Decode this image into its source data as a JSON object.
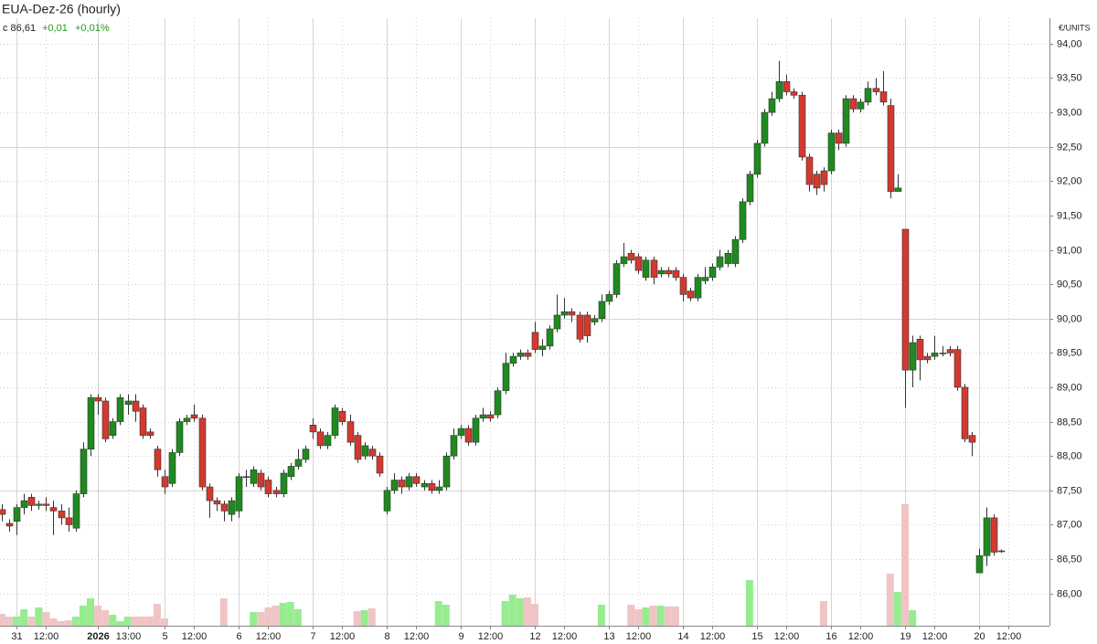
{
  "chart_data": {
    "type": "candlestick",
    "title": "EUA-Dez-26 (hourly)",
    "last_label": "c 86,61",
    "change_label": "+0,01",
    "change_pct_label": "+0,01%",
    "unit_label": "€/UNITS",
    "categories": [
      null,
      null,
      "31",
      null,
      null,
      null,
      "12:00",
      null,
      null,
      null,
      null,
      null,
      null,
      "2026",
      null,
      null,
      null,
      "13:00",
      null,
      null,
      null,
      null,
      "5",
      null,
      null,
      null,
      "12:00",
      null,
      null,
      null,
      null,
      null,
      "6",
      null,
      null,
      null,
      "12:00",
      null,
      null,
      null,
      null,
      null,
      "7",
      null,
      null,
      null,
      "12:00",
      null,
      null,
      null,
      null,
      null,
      "8",
      null,
      null,
      null,
      "12:00",
      null,
      null,
      null,
      null,
      null,
      "9",
      null,
      null,
      null,
      "12:00",
      null,
      null,
      null,
      null,
      null,
      "12",
      null,
      null,
      null,
      "12:00",
      null,
      null,
      null,
      null,
      null,
      "13",
      null,
      null,
      null,
      "12:00",
      null,
      null,
      null,
      null,
      null,
      "14",
      null,
      null,
      null,
      "12:00",
      null,
      null,
      null,
      null,
      null,
      "15",
      null,
      null,
      null,
      "12:00",
      null,
      null,
      null,
      null,
      null,
      "16",
      null,
      null,
      null,
      "12:00",
      null,
      null,
      null,
      null,
      null,
      "19",
      null,
      null,
      null,
      "12:00",
      null,
      null,
      null,
      null,
      null,
      "20",
      null,
      null,
      null,
      "12:00"
    ],
    "open": [
      87.22,
      87.02,
      87.05,
      87.25,
      87.4,
      87.28,
      87.3,
      87.25,
      87.2,
      87.1,
      86.95,
      87.45,
      88.1,
      88.85,
      88.8,
      88.3,
      88.5,
      88.75,
      88.8,
      88.7,
      88.35,
      88.1,
      87.7,
      87.6,
      88.05,
      88.5,
      88.6,
      88.55,
      87.55,
      87.35,
      87.3,
      87.15,
      87.2,
      87.7,
      87.6,
      87.75,
      87.65,
      87.5,
      87.45,
      87.7,
      87.85,
      87.95,
      88.45,
      88.35,
      88.15,
      88.3,
      88.65,
      88.5,
      88.3,
      88.0,
      88.1,
      88.0,
      87.2,
      87.5,
      87.65,
      87.55,
      87.7,
      87.55,
      87.6,
      87.5,
      87.55,
      88.0,
      88.3,
      88.4,
      88.2,
      88.55,
      88.6,
      88.6,
      88.95,
      89.35,
      89.45,
      89.5,
      89.8,
      89.55,
      89.6,
      89.85,
      90.05,
      90.1,
      90.05,
      90.05,
      89.95,
      90.0,
      90.25,
      90.35,
      90.8,
      90.95,
      90.9,
      90.6,
      90.85,
      90.65,
      90.7,
      90.7,
      90.6,
      90.4,
      90.3,
      90.55,
      90.6,
      90.75,
      90.8,
      90.8,
      91.15,
      91.7,
      92.1,
      92.55,
      93.0,
      93.2,
      93.45,
      93.3,
      93.25,
      92.35,
      92.1,
      92.15,
      92.15,
      92.7,
      92.55,
      93.2,
      93.05,
      93.15,
      93.35,
      93.3,
      93.1,
      91.85,
      91.3,
      89.25,
      89.7,
      89.45,
      89.45,
      89.5,
      89.55,
      89.55,
      89.0,
      88.3,
      86.3,
      86.55,
      87.1,
      86.62,
      null
    ],
    "high": [
      87.3,
      87.08,
      87.3,
      87.45,
      87.45,
      87.35,
      87.4,
      87.35,
      87.3,
      87.25,
      87.5,
      88.2,
      88.9,
      88.9,
      88.85,
      88.55,
      88.9,
      88.9,
      88.9,
      88.75,
      88.4,
      88.15,
      87.8,
      88.1,
      88.55,
      88.6,
      88.75,
      88.6,
      87.6,
      87.4,
      87.35,
      87.4,
      87.75,
      87.8,
      87.85,
      87.8,
      87.7,
      87.55,
      87.8,
      87.9,
      88.1,
      88.15,
      88.55,
      88.4,
      88.35,
      88.75,
      88.7,
      88.6,
      88.35,
      88.2,
      88.15,
      88.05,
      87.55,
      87.75,
      87.7,
      87.75,
      87.75,
      87.65,
      87.65,
      87.65,
      88.05,
      88.4,
      88.45,
      88.45,
      88.6,
      88.7,
      88.65,
      89.0,
      89.5,
      89.5,
      89.55,
      89.55,
      89.95,
      89.7,
      89.9,
      90.35,
      90.3,
      90.15,
      90.1,
      90.1,
      90.05,
      90.35,
      90.4,
      90.85,
      91.1,
      91.0,
      90.95,
      90.9,
      90.9,
      90.75,
      90.75,
      90.75,
      90.65,
      90.45,
      90.65,
      90.75,
      90.8,
      91.0,
      91.0,
      91.2,
      91.75,
      92.15,
      92.6,
      93.05,
      93.3,
      93.75,
      93.55,
      93.35,
      93.3,
      92.4,
      92.15,
      92.2,
      92.75,
      92.75,
      93.25,
      93.25,
      93.2,
      93.45,
      93.5,
      93.6,
      93.2,
      92.1,
      91.3,
      89.75,
      89.75,
      89.5,
      89.75,
      89.6,
      89.6,
      89.6,
      89.05,
      88.35,
      86.65,
      87.25,
      87.15,
      86.64,
      null
    ],
    "low": [
      87.05,
      86.9,
      86.85,
      87.15,
      87.2,
      87.22,
      87.2,
      86.85,
      87.0,
      86.9,
      86.9,
      87.4,
      88.0,
      88.6,
      88.2,
      88.25,
      88.45,
      88.6,
      88.5,
      88.25,
      88.25,
      87.7,
      87.45,
      87.55,
      88.0,
      88.45,
      88.5,
      87.5,
      87.1,
      87.2,
      87.05,
      87.05,
      87.1,
      87.55,
      87.55,
      87.5,
      87.4,
      87.4,
      87.4,
      87.65,
      87.8,
      87.9,
      88.25,
      88.1,
      88.1,
      88.25,
      88.45,
      88.15,
      87.9,
      87.95,
      87.95,
      87.7,
      87.15,
      87.45,
      87.45,
      87.5,
      87.55,
      87.5,
      87.45,
      87.45,
      87.5,
      87.95,
      88.25,
      88.15,
      88.15,
      88.5,
      88.5,
      88.55,
      88.9,
      89.3,
      89.4,
      89.4,
      89.5,
      89.45,
      89.55,
      89.8,
      90.0,
      89.95,
      89.65,
      89.65,
      89.9,
      89.95,
      90.2,
      90.3,
      90.75,
      90.8,
      90.65,
      90.55,
      90.5,
      90.6,
      90.6,
      90.55,
      90.25,
      90.25,
      90.25,
      90.5,
      90.55,
      90.7,
      90.75,
      90.75,
      91.1,
      91.65,
      92.05,
      92.5,
      92.95,
      93.15,
      93.25,
      93.2,
      92.3,
      91.85,
      91.8,
      91.85,
      92.1,
      92.45,
      92.5,
      93.0,
      93.0,
      93.1,
      93.25,
      93.1,
      91.75,
      91.85,
      88.7,
      89.0,
      89.1,
      89.35,
      89.4,
      89.45,
      89.45,
      88.95,
      88.2,
      88.0,
      86.3,
      86.4,
      86.55,
      86.59,
      null
    ],
    "close": [
      87.15,
      86.98,
      87.25,
      87.35,
      87.28,
      87.3,
      87.28,
      87.2,
      87.1,
      87.0,
      87.45,
      88.1,
      88.85,
      88.8,
      88.25,
      88.5,
      88.85,
      88.8,
      88.65,
      88.3,
      88.3,
      87.8,
      87.55,
      88.05,
      88.5,
      88.55,
      88.55,
      87.55,
      87.35,
      87.3,
      87.2,
      87.35,
      87.7,
      87.7,
      87.8,
      87.55,
      87.45,
      87.45,
      87.75,
      87.85,
      87.95,
      88.1,
      88.35,
      88.15,
      88.3,
      88.7,
      88.5,
      88.2,
      87.95,
      88.15,
      88.0,
      87.75,
      87.5,
      87.65,
      87.55,
      87.7,
      87.6,
      87.6,
      87.5,
      87.55,
      88.0,
      88.3,
      88.4,
      88.2,
      88.55,
      88.6,
      88.55,
      88.95,
      89.35,
      89.45,
      89.5,
      89.45,
      89.55,
      89.6,
      89.85,
      90.05,
      90.1,
      90.05,
      89.7,
      89.75,
      90.0,
      90.25,
      90.35,
      90.8,
      90.9,
      90.85,
      90.7,
      90.85,
      90.6,
      90.7,
      90.65,
      90.6,
      90.35,
      90.3,
      90.6,
      90.6,
      90.75,
      90.9,
      90.95,
      91.15,
      91.7,
      92.1,
      92.55,
      93.0,
      93.2,
      93.45,
      93.3,
      93.25,
      92.35,
      91.95,
      91.9,
      91.95,
      92.7,
      92.55,
      93.2,
      93.05,
      93.15,
      93.35,
      93.3,
      93.15,
      91.85,
      91.9,
      89.25,
      89.65,
      89.4,
      89.4,
      89.5,
      89.5,
      89.5,
      89.0,
      88.25,
      88.2,
      86.55,
      87.1,
      86.6,
      86.61,
      null
    ],
    "volume": [
      13,
      10,
      10,
      18,
      10,
      20,
      15,
      8,
      5,
      6,
      10,
      22,
      30,
      22,
      17,
      12,
      5,
      10,
      10,
      10,
      10,
      24,
      8,
      0,
      0,
      0,
      0,
      0,
      0,
      0,
      30,
      0,
      0,
      0,
      15,
      15,
      20,
      22,
      25,
      26,
      18,
      0,
      0,
      0,
      0,
      0,
      0,
      0,
      16,
      17,
      19,
      0,
      0,
      0,
      0,
      0,
      0,
      0,
      0,
      27,
      23,
      0,
      0,
      0,
      0,
      0,
      0,
      0,
      27,
      34,
      30,
      31,
      24,
      0,
      0,
      0,
      0,
      0,
      0,
      0,
      0,
      23,
      0,
      0,
      0,
      23,
      18,
      20,
      22,
      22,
      21,
      21,
      0,
      0,
      0,
      0,
      0,
      0,
      0,
      0,
      0,
      50,
      0,
      0,
      0,
      0,
      0,
      0,
      0,
      0,
      0,
      27,
      0,
      0,
      0,
      0,
      0,
      0,
      0,
      0,
      57,
      37,
      133,
      17,
      0,
      0,
      0,
      0,
      0,
      0,
      0,
      0,
      0,
      0,
      0,
      0,
      null
    ],
    "up_color": "#1f8a1f",
    "down_color": "#d2392f",
    "up_volume_color": "#97ec8f",
    "down_volume_color": "#f0c4c4",
    "ylim": [
      85.53,
      94.37
    ],
    "yticks": [
      {
        "value": 86,
        "label": "86,00"
      },
      {
        "value": 86.5,
        "label": "86,50"
      },
      {
        "value": 87,
        "label": "87,00"
      },
      {
        "value": 87.5,
        "label": "87,50"
      },
      {
        "value": 88,
        "label": "88,00"
      },
      {
        "value": 88.5,
        "label": "88,50"
      },
      {
        "value": 89,
        "label": "89,00"
      },
      {
        "value": 89.5,
        "label": "89,50"
      },
      {
        "value": 90,
        "label": "90,00"
      },
      {
        "value": 90.5,
        "label": "90,50"
      },
      {
        "value": 91,
        "label": "91,00"
      },
      {
        "value": 91.5,
        "label": "91,50"
      },
      {
        "value": 92,
        "label": "92,00"
      },
      {
        "value": 92.5,
        "label": "92,50"
      },
      {
        "value": 93,
        "label": "93,00"
      },
      {
        "value": 93.5,
        "label": "93,50"
      },
      {
        "value": 94,
        "label": "94,00"
      }
    ],
    "grid": true
  }
}
